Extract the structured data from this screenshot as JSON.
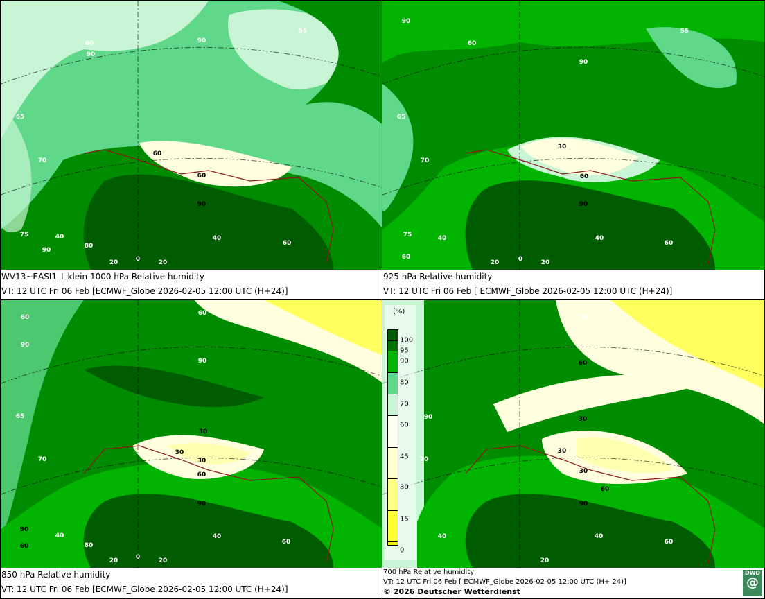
{
  "colors": {
    "c100": "#005c00",
    "c95": "#007400",
    "c90": "#008c00",
    "c80": "#00b400",
    "c70": "#5fd88a",
    "c60": "#c8f6d4",
    "c45": "#fffff0",
    "c30": "#ffffb0",
    "c15": "#ffff60",
    "c0": "#f0f000"
  },
  "panels": [
    {
      "title": "WV13~EASI1_I_klein 1000 hPa Relative humidity",
      "valid": "VT: 12 UTC Fri  06 Feb [ECMWF_Globe 2026-02-05 12:00 UTC  (H+24)]",
      "contour_labels": [
        "90",
        "60",
        "90",
        "55",
        "65",
        "70",
        "60",
        "60",
        "90",
        "40",
        "60",
        "75",
        "40",
        "90",
        "80",
        "20",
        "0",
        "20"
      ]
    },
    {
      "title": "925 hPa Relative humidity",
      "valid": "VT: 12 UTC Fri  06 Feb [ ECMWF_Globe 2026-02-05 12:00 UTC (H+24)]",
      "contour_labels": [
        "90",
        "60",
        "55",
        "90",
        "65",
        "70",
        "30",
        "60",
        "90",
        "75",
        "40",
        "40",
        "60",
        "60",
        "20",
        "0",
        "20"
      ]
    },
    {
      "title": "850 hPa  Relative humidity",
      "valid": "VT: 12 UTC Fri  06 Feb [ECMWF_Globe 2026-02-05 12:00 UTC (H+24)]",
      "contour_labels": [
        "60",
        "60",
        "90",
        "90",
        "65",
        "70",
        "30",
        "30",
        "30",
        "60",
        "90",
        "40",
        "40",
        "60",
        "90",
        "60",
        "80",
        "20",
        "0",
        "20"
      ]
    },
    {
      "title": "700 hPa Relative humidity",
      "valid": "VT: 12 UTC Fri  06 Feb [ ECMWF_Globe 2026-02-05 12:00 UTC  (H+ 24)]",
      "contour_labels": [
        "90",
        "60",
        "90",
        "70",
        "30",
        "30",
        "30",
        "60",
        "90",
        "40",
        "40",
        "60",
        "20"
      ]
    }
  ],
  "legend": {
    "unit": "(%)",
    "ticks": [
      "100",
      "95",
      "90",
      "80",
      "70",
      "60",
      "45",
      "30",
      "15",
      "0"
    ]
  },
  "footer": {
    "copyright": "© 2026 Deutscher Wetterdienst",
    "logo": "DWD"
  }
}
